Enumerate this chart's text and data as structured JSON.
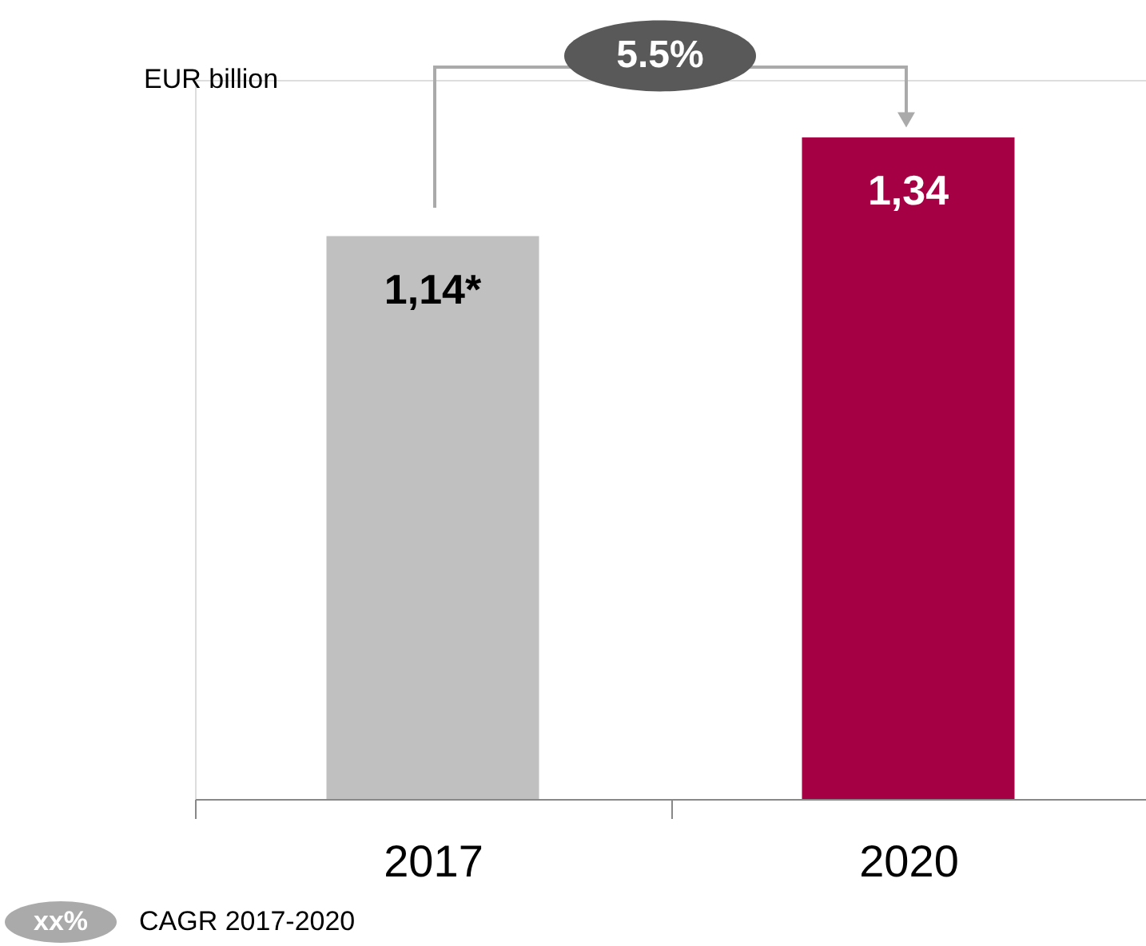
{
  "chart_data": {
    "type": "bar",
    "categories": [
      "2017",
      "2020"
    ],
    "values": [
      1.14,
      1.34
    ],
    "colors": [
      "#c0c0c0",
      "#a50044"
    ],
    "value_labels": [
      "1,14*",
      "1,34"
    ],
    "annotations": [
      "EUR billion",
      "5.5%",
      "xx%",
      "CAGR 2017-2020"
    ]
  }
}
